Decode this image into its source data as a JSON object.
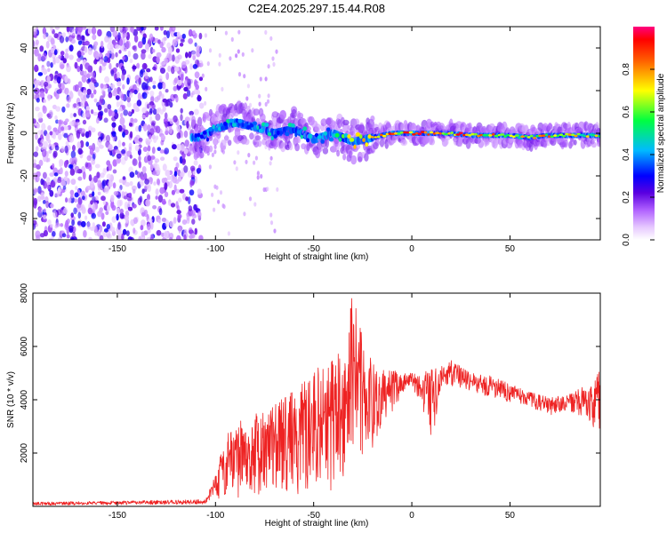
{
  "figure_title": "C2E4.2025.297.15.44.R08",
  "colorbar": {
    "label": "Normalized spectral amplitude",
    "range": [
      0,
      1
    ],
    "ticks": [
      0.0,
      0.2,
      0.4,
      0.6,
      0.8
    ],
    "tick_labels": [
      "0.0",
      "0.2",
      "0.4",
      "0.6",
      "0.8"
    ],
    "colors": [
      "#ffffff",
      "#c97dff",
      "#6b00e0",
      "#0000ff",
      "#00c8ff",
      "#00ff40",
      "#ffff00",
      "#ff6000",
      "#ff0000",
      "#ff0080"
    ]
  },
  "chart_data": [
    {
      "type": "heatmap",
      "title": "C2E4.2025.297.15.44.R08",
      "xlabel": "Height of straight line (km)",
      "ylabel": "Frequency (Hz)",
      "xlim": [
        -193,
        96
      ],
      "ylim": [
        -50,
        50
      ],
      "xticks": [
        -150,
        -100,
        -50,
        0,
        50
      ],
      "yticks": [
        -40,
        -20,
        0,
        20,
        40
      ],
      "x_tick_labels": [
        "-150",
        "-100",
        "-50",
        "0",
        "50"
      ],
      "y_tick_labels": [
        "-40",
        "-20",
        "0",
        "20",
        "40"
      ],
      "ridge": {
        "name": "dominant frequency track",
        "x": [
          -108,
          -100,
          -90,
          -80,
          -70,
          -60,
          -50,
          -40,
          -30,
          -20,
          -10,
          0,
          10,
          20,
          30,
          40,
          50,
          60,
          70,
          80,
          90,
          96
        ],
        "y": [
          -2,
          2,
          5,
          3,
          0,
          2,
          -3,
          0,
          -4,
          -2,
          0,
          0,
          0,
          0,
          -1,
          -1,
          -1,
          -2,
          -1,
          -1,
          -1,
          -1
        ],
        "peak_amplitude": [
          0.35,
          0.45,
          0.5,
          0.5,
          0.45,
          0.5,
          0.45,
          0.5,
          0.75,
          0.8,
          0.95,
          0.95,
          0.9,
          0.95,
          0.9,
          0.85,
          0.8,
          0.85,
          0.85,
          0.8,
          0.75,
          0.7
        ]
      },
      "noise_region": {
        "x_range": [
          -193,
          -107
        ],
        "frequency_range": [
          -50,
          50
        ],
        "amplitude_range": [
          0.05,
          0.3
        ]
      }
    },
    {
      "type": "line",
      "xlabel": "Height of straight line (km)",
      "ylabel": "SNR (10 * v/v)",
      "xlim": [
        -193,
        96
      ],
      "ylim": [
        0,
        8000
      ],
      "xticks": [
        -150,
        -100,
        -50,
        0,
        50
      ],
      "yticks": [
        2000,
        4000,
        6000,
        8000
      ],
      "x_tick_labels": [
        "-150",
        "-100",
        "-50",
        "0",
        "50"
      ],
      "y_tick_labels": [
        "2000",
        "4000",
        "6000",
        "8000"
      ],
      "series": [
        {
          "name": "SNR",
          "color": "#ee2222",
          "envelope_x": [
            -193,
            -150,
            -105,
            -100,
            -95,
            -90,
            -80,
            -70,
            -60,
            -50,
            -40,
            -35,
            -30,
            -25,
            -20,
            -15,
            -10,
            -5,
            0,
            5,
            10,
            15,
            20,
            30,
            40,
            50,
            60,
            70,
            80,
            90,
            96
          ],
          "envelope_max": [
            160,
            200,
            260,
            1200,
            2600,
            3100,
            3500,
            3800,
            4400,
            5200,
            5800,
            6600,
            8000,
            6300,
            5500,
            5100,
            5200,
            5000,
            5000,
            4900,
            5300,
            5300,
            5500,
            5000,
            4900,
            4600,
            4300,
            4100,
            4200,
            4600,
            5200
          ],
          "envelope_min": [
            40,
            60,
            80,
            200,
            250,
            300,
            300,
            400,
            450,
            500,
            600,
            900,
            1200,
            1500,
            2200,
            3000,
            3500,
            4200,
            4500,
            3800,
            2300,
            4500,
            4500,
            4300,
            4100,
            3900,
            3700,
            3400,
            3500,
            3000,
            2800
          ]
        }
      ]
    }
  ]
}
